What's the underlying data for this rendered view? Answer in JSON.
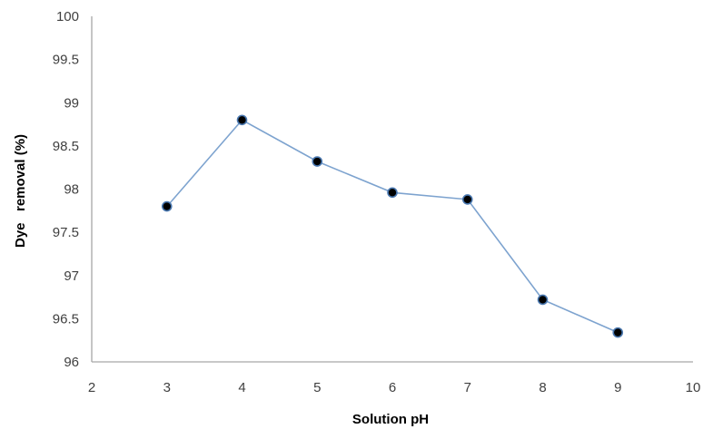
{
  "chart_data": {
    "type": "line",
    "title": "",
    "xlabel": "Solution pH",
    "ylabel": "Dye   removal (%)",
    "xlim": [
      2,
      10
    ],
    "ylim": [
      96,
      100
    ],
    "x_ticks": [
      "2",
      "3",
      "4",
      "5",
      "6",
      "7",
      "8",
      "9",
      "10"
    ],
    "y_ticks": [
      "96",
      "96.5",
      "97",
      "97.5",
      "98",
      "98.5",
      "99",
      "99.5",
      "100"
    ],
    "grid": false,
    "legend": "none",
    "series": [
      {
        "x": [
          3,
          4,
          5,
          6,
          7,
          8,
          9
        ],
        "values": [
          97.8,
          98.8,
          98.32,
          97.96,
          97.88,
          96.72,
          96.34
        ],
        "line_color": "#7da3cf",
        "marker_color": "#000000",
        "marker_edge_color": "#4a78b0"
      }
    ],
    "axis_color": "#a6a6a6"
  }
}
